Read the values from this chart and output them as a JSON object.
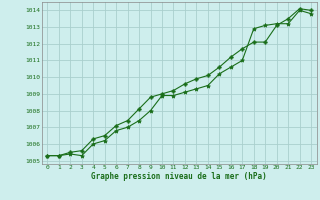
{
  "title": "Graphe pression niveau de la mer (hPa)",
  "bg_color": "#ceeeed",
  "grid_color": "#aacfcd",
  "line_color": "#1a6e1a",
  "marker_color": "#1a6e1a",
  "xlim": [
    -0.5,
    23.5
  ],
  "ylim": [
    1004.8,
    1014.5
  ],
  "xticks": [
    0,
    1,
    2,
    3,
    4,
    5,
    6,
    7,
    8,
    9,
    10,
    11,
    12,
    13,
    14,
    15,
    16,
    17,
    18,
    19,
    20,
    21,
    22,
    23
  ],
  "yticks": [
    1005,
    1006,
    1007,
    1008,
    1009,
    1010,
    1011,
    1012,
    1013,
    1014
  ],
  "series1": [
    1005.3,
    1005.3,
    1005.4,
    1005.3,
    1006.0,
    1006.2,
    1006.8,
    1007.0,
    1007.4,
    1008.0,
    1008.9,
    1008.9,
    1009.1,
    1009.3,
    1009.5,
    1010.2,
    1010.6,
    1011.0,
    1012.9,
    1013.1,
    1013.2,
    1013.2,
    1014.0,
    1013.8
  ],
  "series2": [
    1005.3,
    1005.3,
    1005.5,
    1005.6,
    1006.3,
    1006.5,
    1007.1,
    1007.4,
    1008.1,
    1008.8,
    1009.0,
    1009.2,
    1009.6,
    1009.9,
    1010.1,
    1010.6,
    1011.2,
    1011.7,
    1012.1,
    1012.1,
    1013.1,
    1013.5,
    1014.1,
    1014.0
  ]
}
